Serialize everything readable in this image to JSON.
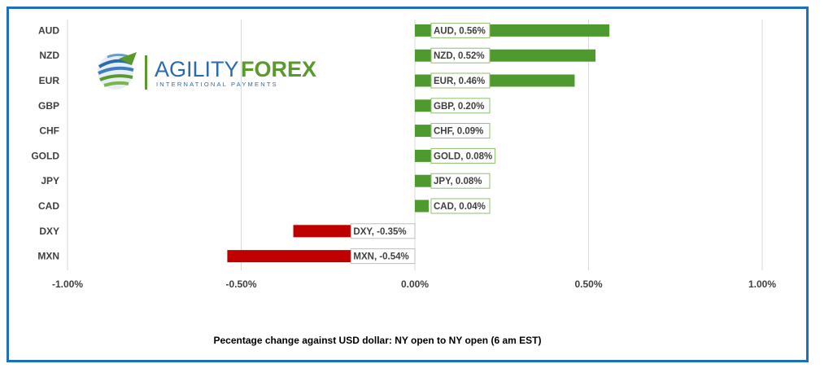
{
  "chart_data": {
    "type": "bar",
    "orientation": "horizontal",
    "categories": [
      "AUD",
      "NZD",
      "EUR",
      "GBP",
      "CHF",
      "GOLD",
      "JPY",
      "CAD",
      "DXY",
      "MXN"
    ],
    "values": [
      0.56,
      0.52,
      0.46,
      0.2,
      0.09,
      0.08,
      0.08,
      0.04,
      -0.35,
      -0.54
    ],
    "data_labels": [
      "AUD, 0.56%",
      "NZD, 0.52%",
      "EUR, 0.46%",
      "GBP, 0.20%",
      "CHF, 0.09%",
      "GOLD, 0.08%",
      "JPY, 0.08%",
      "CAD, 0.04%",
      "DXY, -0.35%",
      "MXN, -0.54%"
    ],
    "xticks": [
      "-1.00%",
      "-0.50%",
      "0.00%",
      "0.50%",
      "1.00%"
    ],
    "xtick_values": [
      -1.0,
      -0.5,
      0.0,
      0.5,
      1.0
    ],
    "xlim": [
      -1.0,
      1.0
    ],
    "xlabel": "Pecentage change against USD dollar:  NY open to NY open  (6 am EST)",
    "grid": "vertical",
    "colors": {
      "positive": "#4e9a2f",
      "negative": "#c00000",
      "frame": "#1f6fbf"
    }
  },
  "logo": {
    "name_part1": "AGILITY",
    "name_part2": "FOREX",
    "tagline": "INTERNATIONAL PAYMENTS",
    "colors": {
      "blue": "#2a6bb0",
      "green": "#5a9a2c"
    }
  }
}
